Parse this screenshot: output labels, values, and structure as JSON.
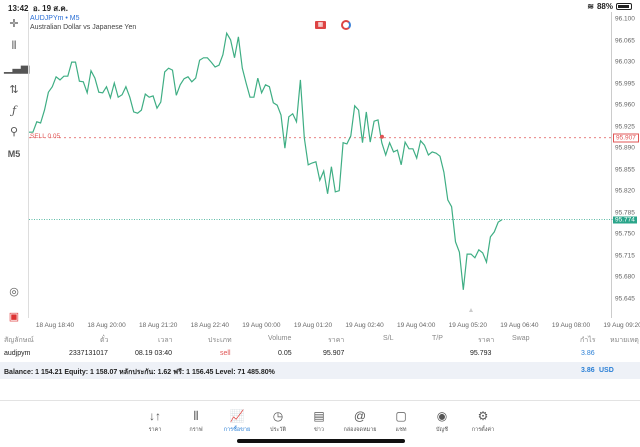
{
  "status": {
    "time": "13:42",
    "date": "อ. 19 ส.ค.",
    "battery": "88%",
    "battery_level": 0.88
  },
  "chart": {
    "symbol": "AUDJPYm • M5",
    "description": "Australian Dollar vs Japanese Yen",
    "timeframe": "M5",
    "sell_label": "SELL 0.05",
    "sell_price": 95.907,
    "current_price": 95.774,
    "sell_price_label": "95.907",
    "current_price_label": "95.774",
    "colors": {
      "line": "#3fae84",
      "sell": "#e05555",
      "current": "#2aa58a"
    }
  },
  "chart_data": {
    "type": "line",
    "ylim": [
      95.625,
      96.12
    ],
    "y_ticks": [
      "96.100",
      "96.065",
      "96.030",
      "95.995",
      "95.960",
      "95.925",
      "95.890",
      "95.855",
      "95.820",
      "95.785",
      "95.750",
      "95.715",
      "95.680",
      "95.645"
    ],
    "x_ticks": [
      "18 Aug 18:40",
      "18 Aug 20:00",
      "18 Aug 21:20",
      "18 Aug 22:40",
      "19 Aug 00:00",
      "19 Aug 01:20",
      "19 Aug 02:40",
      "19 Aug 04:00",
      "19 Aug 05:20",
      "19 Aug 06:40",
      "19 Aug 08:00",
      "19 Aug 09:20"
    ],
    "values": [
      95.916,
      95.916,
      95.933,
      95.931,
      95.952,
      95.981,
      95.99,
      96.006,
      96.001,
      96.007,
      96.007,
      96.03,
      96.03,
      95.999,
      95.998,
      95.98,
      96.016,
      96.004,
      95.981,
      95.98,
      95.99,
      95.972,
      95.996,
      95.973,
      95.977,
      95.99,
      95.973,
      95.949,
      95.947,
      95.952,
      95.978,
      95.973,
      95.975,
      95.955,
      95.965,
      96.014,
      96.02,
      96.017,
      95.976,
      95.993,
      96.003,
      96.006,
      95.998,
      96.004,
      96.033,
      96.037,
      96.037,
      96.03,
      96.022,
      96.025,
      96.042,
      96.077,
      96.066,
      96.037,
      96.071,
      96.02,
      95.996,
      95.973,
      95.973,
      96.004,
      95.98,
      95.993,
      95.99,
      95.964,
      95.96,
      95.944,
      95.89,
      95.941,
      95.946,
      95.933,
      96.001,
      95.907,
      95.863,
      95.866,
      95.868,
      95.838,
      95.853,
      95.816,
      95.86,
      95.819,
      95.821,
      95.899,
      95.897,
      95.91,
      95.959,
      95.952,
      95.899,
      95.949,
      95.9,
      95.934,
      95.936,
      95.899,
      95.879,
      95.899,
      95.884,
      95.887,
      95.863,
      95.9,
      95.889,
      95.889,
      95.874,
      95.902,
      95.895,
      95.879,
      95.884,
      95.882,
      95.877,
      95.851,
      95.806,
      95.795,
      95.738,
      95.721,
      95.66,
      95.718,
      95.718,
      95.712,
      95.725,
      95.72,
      95.705,
      95.746,
      95.754,
      95.77,
      95.774
    ],
    "series_extent": 0.81
  },
  "table": {
    "headers": [
      "สัญลักษณ์",
      "ตั๋ว",
      "เวลา",
      "ประเภท",
      "Volume",
      "ราคา",
      "S/L",
      "T/P",
      "ราคา",
      "Swap",
      "กำไร",
      "หมายเหตุ"
    ],
    "row": {
      "symbol": "audjpym",
      "ticket": "2337131017",
      "time": "08.19 03:40",
      "type": "sell",
      "volume": "0.05",
      "open_price": "95.907",
      "sl": "",
      "tp": "",
      "price": "95.793",
      "swap": "",
      "profit": "3.86",
      "comment": ""
    }
  },
  "balance": {
    "text": "Balance: 1 154.21 Equity: 1 158.07 หลักประกัน: 1.62 ฟรี: 1 156.45 Level: 71 485.80%",
    "profit": "3.86",
    "currency": "USD"
  },
  "tabs": [
    {
      "label": "ราคา",
      "icon": "↓↑",
      "name": "quotes"
    },
    {
      "label": "กราฟ",
      "icon": "⫴",
      "name": "chart"
    },
    {
      "label": "การซื้อขาย",
      "icon": "📈",
      "name": "trade",
      "active": true
    },
    {
      "label": "ประวัติ",
      "icon": "◷",
      "name": "history"
    },
    {
      "label": "ข่าว",
      "icon": "▤",
      "name": "news"
    },
    {
      "label": "กล่องจดหมาย",
      "icon": "@",
      "name": "mailbox"
    },
    {
      "label": "แชท",
      "icon": "▢",
      "name": "chat"
    },
    {
      "label": "บัญชี",
      "icon": "◉",
      "name": "accounts"
    },
    {
      "label": "การตั้งค่า",
      "icon": "⚙",
      "name": "settings"
    }
  ]
}
